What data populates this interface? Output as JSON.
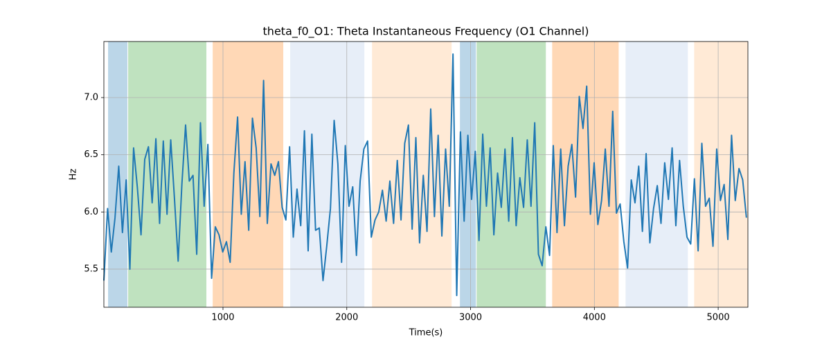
{
  "chart_data": {
    "type": "line",
    "title": "theta_f0_O1: Theta Instantaneous Frequency (O1 Channel)",
    "x_label": "Time(s)",
    "y_label": "Hz",
    "color": "#1f77b4",
    "grid": true,
    "xlim": [
      38,
      5240
    ],
    "ylim": [
      5.167,
      7.49
    ],
    "xticks": [
      1000,
      2000,
      3000,
      4000,
      5000
    ],
    "yticks": [
      5.5,
      {
        "value": 6,
        "label": "6.0"
      },
      6.5,
      {
        "value": 7,
        "label": "7.0"
      }
    ],
    "spans": [
      {
        "start": 72,
        "end": 228,
        "color": "#1f77b4"
      },
      {
        "start": 234,
        "end": 866,
        "color": "#2ca02c"
      },
      {
        "start": 917,
        "end": 1487,
        "color": "#ff7f0e"
      },
      {
        "start": 1543,
        "end": 2142,
        "color": "#aec7e8"
      },
      {
        "start": 2204,
        "end": 2847,
        "color": "#ffbb78"
      },
      {
        "start": 2914,
        "end": 3043,
        "color": "#1f77b4"
      },
      {
        "start": 3049,
        "end": 3608,
        "color": "#2ca02c"
      },
      {
        "start": 3659,
        "end": 4196,
        "color": "#ff7f0e"
      },
      {
        "start": 4252,
        "end": 4755,
        "color": "#aec7e8"
      },
      {
        "start": 4806,
        "end": 5240,
        "color": "#ffbb78"
      }
    ],
    "x": [
      38,
      68,
      98,
      128,
      158,
      188,
      218,
      248,
      278,
      308,
      338,
      368,
      398,
      428,
      458,
      488,
      518,
      548,
      578,
      608,
      638,
      668,
      698,
      728,
      758,
      788,
      818,
      848,
      878,
      908,
      938,
      968,
      998,
      1028,
      1058,
      1088,
      1118,
      1148,
      1178,
      1208,
      1238,
      1268,
      1298,
      1328,
      1358,
      1388,
      1418,
      1448,
      1478,
      1508,
      1538,
      1568,
      1598,
      1628,
      1658,
      1688,
      1718,
      1748,
      1778,
      1808,
      1838,
      1868,
      1898,
      1928,
      1958,
      1988,
      2018,
      2048,
      2078,
      2108,
      2138,
      2168,
      2198,
      2228,
      2258,
      2288,
      2318,
      2348,
      2378,
      2408,
      2438,
      2468,
      2498,
      2528,
      2558,
      2588,
      2618,
      2648,
      2678,
      2708,
      2738,
      2768,
      2798,
      2828,
      2858,
      2888,
      2918,
      2948,
      2978,
      3008,
      3038,
      3068,
      3098,
      3128,
      3158,
      3188,
      3218,
      3248,
      3278,
      3308,
      3338,
      3368,
      3398,
      3428,
      3458,
      3488,
      3518,
      3548,
      3578,
      3608,
      3638,
      3668,
      3698,
      3728,
      3758,
      3788,
      3818,
      3848,
      3878,
      3908,
      3938,
      3968,
      3998,
      4028,
      4058,
      4088,
      4118,
      4148,
      4178,
      4208,
      4238,
      4268,
      4298,
      4328,
      4358,
      4388,
      4418,
      4448,
      4478,
      4508,
      4538,
      4568,
      4598,
      4628,
      4658,
      4688,
      4718,
      4748,
      4778,
      4808,
      4838,
      4868,
      4898,
      4928,
      4958,
      4988,
      5018,
      5048,
      5078,
      5108,
      5138,
      5168,
      5198,
      5228
    ],
    "values": [
      5.4,
      6.03,
      5.65,
      5.95,
      6.4,
      5.82,
      6.28,
      5.5,
      6.56,
      6.22,
      5.8,
      6.46,
      6.57,
      6.08,
      6.64,
      5.9,
      6.62,
      5.98,
      6.63,
      6.12,
      5.57,
      6.24,
      6.76,
      6.27,
      6.32,
      5.63,
      6.78,
      6.05,
      6.59,
      5.42,
      5.87,
      5.8,
      5.65,
      5.74,
      5.56,
      6.34,
      6.83,
      5.98,
      6.44,
      5.84,
      6.82,
      6.56,
      5.96,
      7.15,
      5.9,
      6.42,
      6.32,
      6.44,
      6.04,
      5.93,
      6.57,
      5.78,
      6.2,
      5.88,
      6.71,
      5.66,
      6.68,
      5.84,
      5.86,
      5.4,
      5.7,
      6.03,
      6.8,
      6.42,
      5.56,
      6.58,
      6.05,
      6.22,
      5.62,
      6.27,
      6.55,
      6.62,
      5.78,
      5.93,
      6.0,
      6.19,
      5.92,
      6.27,
      5.9,
      6.45,
      5.93,
      6.6,
      6.76,
      5.85,
      6.65,
      5.73,
      6.32,
      5.83,
      6.9,
      5.96,
      6.67,
      5.79,
      6.55,
      6.05,
      7.38,
      5.27,
      6.7,
      5.92,
      6.67,
      6.11,
      6.53,
      5.75,
      6.68,
      6.05,
      6.56,
      5.8,
      6.34,
      6.04,
      6.55,
      5.92,
      6.65,
      5.88,
      6.3,
      6.04,
      6.63,
      6.05,
      6.78,
      5.63,
      5.53,
      5.87,
      5.62,
      6.58,
      5.82,
      6.55,
      5.88,
      6.4,
      6.59,
      6.13,
      7.01,
      6.73,
      7.1,
      5.98,
      6.43,
      5.89,
      6.1,
      6.55,
      6.05,
      6.88,
      5.99,
      6.07,
      5.74,
      5.51,
      6.28,
      6.08,
      6.4,
      5.83,
      6.51,
      5.73,
      6.03,
      6.23,
      5.9,
      6.43,
      6.11,
      6.56,
      5.88,
      6.45,
      6.05,
      5.78,
      5.72,
      6.29,
      5.66,
      6.6,
      6.05,
      6.12,
      5.7,
      6.55,
      6.1,
      6.24,
      5.76,
      6.67,
      6.1,
      6.38,
      6.28,
      5.95
    ]
  }
}
